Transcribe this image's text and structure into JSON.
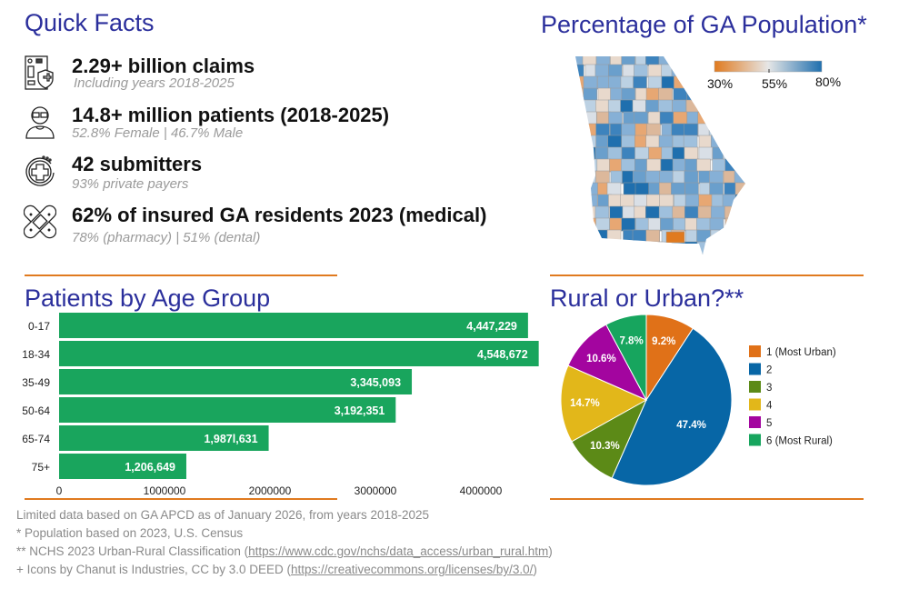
{
  "quick_facts": {
    "title": "Quick Facts",
    "items": [
      {
        "icon": "claims-document-shield-icon",
        "main": "2.29+ billion claims",
        "sub": "Including years 2018-2025"
      },
      {
        "icon": "elderly-person-icon",
        "main": "14.8+ million patients (2018-2025)",
        "sub": "52.8% Female | 46.7% Male"
      },
      {
        "icon": "medical-cross-cycle-icon",
        "main": "42 submitters",
        "sub": "93% private payers"
      },
      {
        "icon": "bandage-icon",
        "main": "62% of insured GA residents 2023 (medical)",
        "sub": "78% (pharmacy) | 51% (dental)"
      }
    ]
  },
  "map": {
    "title": "Percentage of GA Population*",
    "legend": {
      "min": "30%",
      "mid": "55%",
      "max": "80%",
      "colors": [
        "#e07a1f",
        "#e6e6e6",
        "#1f6fae"
      ]
    }
  },
  "chart_data": [
    {
      "type": "bar",
      "title": "Patients by Age Group",
      "orientation": "horizontal",
      "categories": [
        "0-17",
        "18-34",
        "35-49",
        "50-64",
        "65-74",
        "75+"
      ],
      "values": [
        4447229,
        4548672,
        3345093,
        3192351,
        1987631,
        1206649
      ],
      "data_labels": [
        "4,447,229",
        "4,548,672",
        "3,345,093",
        "3,192,351",
        "1,987l,631",
        "1,206,649"
      ],
      "xticks": [
        "0",
        "1000000",
        "2000000",
        "3000000",
        "4000000"
      ],
      "xlim": [
        0,
        4600000
      ],
      "color": "#19a55d"
    },
    {
      "type": "pie",
      "title": "Rural or Urban?**",
      "legend_position": "right",
      "slices": [
        {
          "label": "1 (Most Urban)",
          "value": 9.2,
          "text": "9.2%",
          "color": "#e07118"
        },
        {
          "label": "2",
          "value": 47.4,
          "text": "47.4%",
          "color": "#0766a6"
        },
        {
          "label": "3",
          "value": 10.3,
          "text": "10.3%",
          "color": "#5c8a17"
        },
        {
          "label": "4",
          "value": 14.7,
          "text": "14.7%",
          "color": "#e2b71a"
        },
        {
          "label": "5",
          "value": 10.6,
          "text": "10.6%",
          "color": "#a3059f"
        },
        {
          "label": "6 (Most Rural)",
          "value": 7.8,
          "text": "7.8%",
          "color": "#17a55e"
        }
      ]
    }
  ],
  "notes": {
    "line1": "Limited data based on GA APCD as of January 2026, from years 2018-2025",
    "line2": "* Population based on 2023, U.S. Census",
    "line3_pre": "** NCHS 2023 Urban-Rural Classification (",
    "line3_link": "https://www.cdc.gov/nchs/data_access/urban_rural.htm",
    "line3_post": ")",
    "line4_pre": "+ Icons by Chanut is Industries, CC by 3.0 DEED (",
    "line4_link": "https://creativecommons.org/licenses/by/3.0/",
    "line4_post": ")"
  },
  "colors": {
    "heading": "#2b2f9c",
    "rule": "#e07a1f"
  }
}
